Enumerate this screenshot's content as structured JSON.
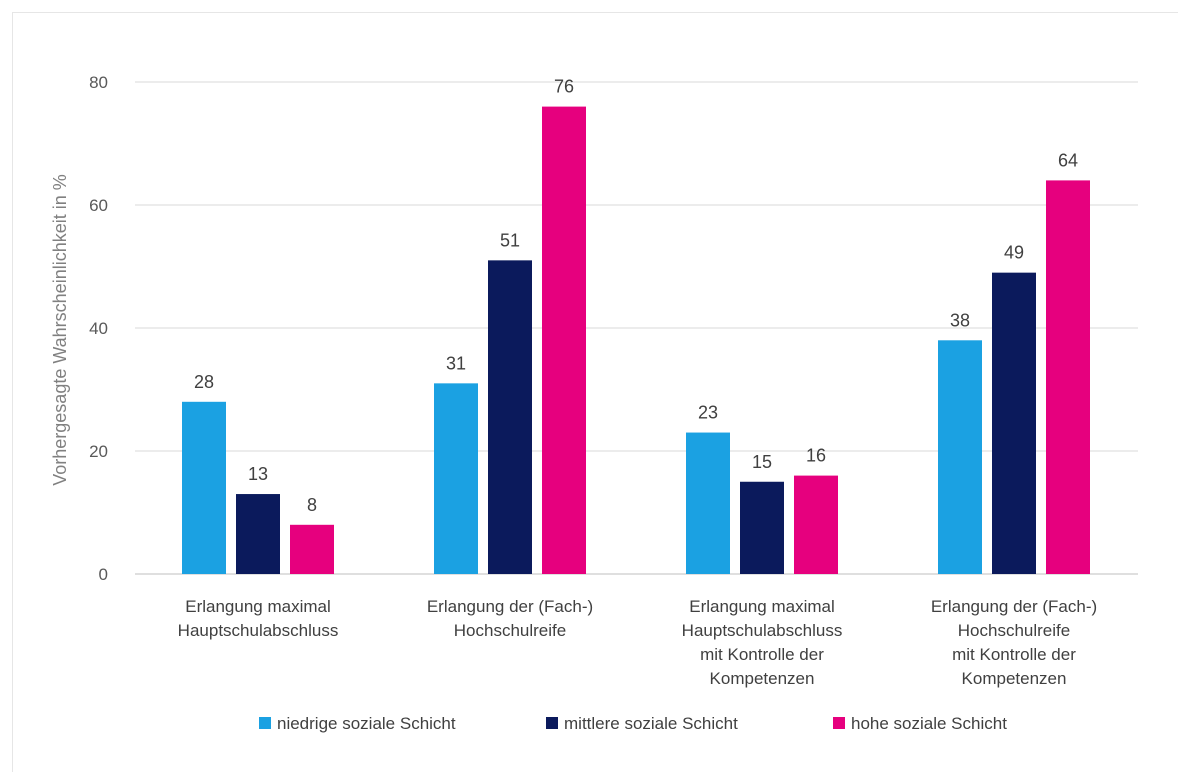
{
  "chart_data": {
    "type": "bar",
    "ylabel": "Vorhergesagte Wahrscheinlichkeit in %",
    "ylim": [
      0,
      80
    ],
    "yticks": [
      0,
      20,
      40,
      60,
      80
    ],
    "grid": true,
    "legend_position": "bottom",
    "categories": [
      [
        "Erlangung maximal",
        "Hauptschulabschluss"
      ],
      [
        "Erlangung der (Fach-)",
        "Hochschulreife"
      ],
      [
        "Erlangung maximal",
        "Hauptschulabschluss",
        "mit Kontrolle der",
        "Kompetenzen"
      ],
      [
        "Erlangung der (Fach-)",
        "Hochschulreife",
        "mit Kontrolle der",
        "Kompetenzen"
      ]
    ],
    "series": [
      {
        "name": "niedrige soziale Schicht",
        "color": "#1BA1E2",
        "values": [
          28,
          31,
          23,
          38
        ]
      },
      {
        "name": "mittlere soziale Schicht",
        "color": "#0B1A5C",
        "values": [
          13,
          51,
          15,
          49
        ]
      },
      {
        "name": "hohe soziale Schicht",
        "color": "#E6007E",
        "values": [
          8,
          76,
          16,
          64
        ]
      }
    ]
  }
}
